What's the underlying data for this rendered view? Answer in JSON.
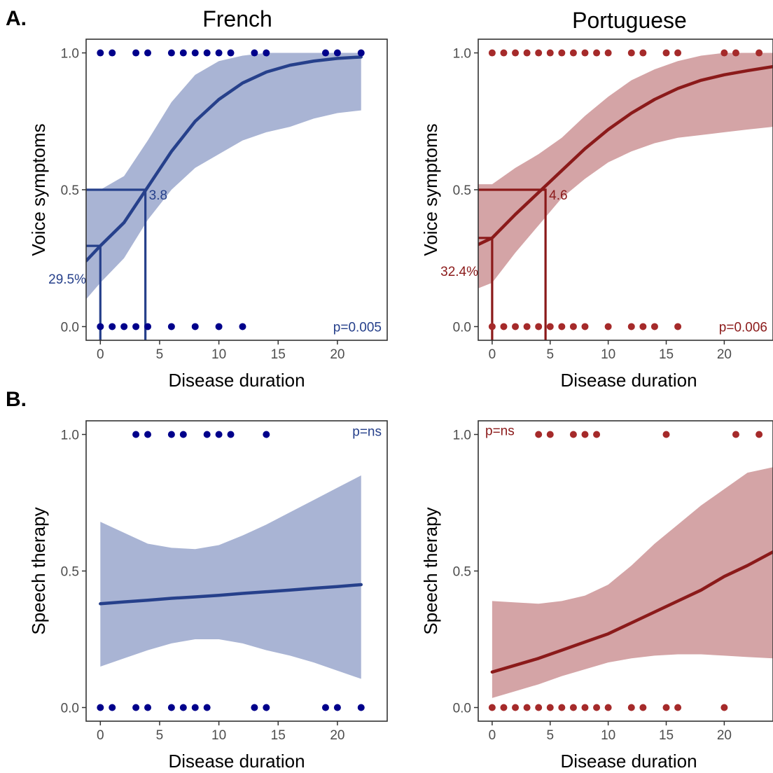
{
  "figure": {
    "panel_tags": [
      "A.",
      "B."
    ],
    "column_titles": [
      "French",
      "Portuguese"
    ]
  },
  "chart_data": [
    {
      "id": "voice-french",
      "type": "scatter",
      "series_color": "#26408b",
      "point_color": "#00008b",
      "ribbon_color": "#a9b4d4",
      "xlabel": "Disease duration",
      "ylabel": "Voice symptoms",
      "xlim": [
        -1.2,
        24.2
      ],
      "ylim": [
        -0.05,
        1.05
      ],
      "xticks": [
        0,
        5,
        10,
        15,
        20
      ],
      "yticks": [
        0.0,
        0.5,
        1.0
      ],
      "ytick_labels": [
        "0.0",
        "0.5",
        "1.0"
      ],
      "grid": false,
      "points_y1": [
        0,
        1,
        3,
        4,
        6,
        7,
        8,
        9,
        10,
        11,
        13,
        14,
        19,
        20,
        22
      ],
      "points_y0": [
        0,
        1,
        2,
        3,
        4,
        6,
        8,
        10,
        12
      ],
      "fit": {
        "x": [
          -1.2,
          0,
          2,
          4,
          6,
          8,
          10,
          12,
          14,
          16,
          18,
          20,
          22
        ],
        "y": [
          0.24,
          0.295,
          0.38,
          0.51,
          0.64,
          0.75,
          0.83,
          0.89,
          0.93,
          0.955,
          0.97,
          0.98,
          0.985
        ],
        "lower": [
          0.1,
          0.16,
          0.25,
          0.39,
          0.5,
          0.58,
          0.63,
          0.68,
          0.71,
          0.73,
          0.76,
          0.78,
          0.79
        ],
        "upper": [
          0.5,
          0.5,
          0.55,
          0.68,
          0.82,
          0.92,
          0.97,
          0.99,
          1.0,
          1.0,
          1.0,
          1.0,
          1.0
        ]
      },
      "guides": [
        {
          "x": 3.8,
          "y": 0.5,
          "label": "3.8"
        },
        {
          "x": 0,
          "y": 0.295,
          "label": "29.5%"
        }
      ],
      "p_label": "p=0.005",
      "p_position": "bottom-right"
    },
    {
      "id": "voice-portuguese",
      "type": "scatter",
      "series_color": "#8b1a1a",
      "point_color": "#a52a2a",
      "ribbon_color": "#d4a4a6",
      "xlabel": "Disease duration",
      "ylabel": "Voice symptoms",
      "xlim": [
        -1.2,
        24.2
      ],
      "ylim": [
        -0.05,
        1.05
      ],
      "xticks": [
        0,
        5,
        10,
        15,
        20
      ],
      "yticks": [
        0.0,
        0.5,
        1.0
      ],
      "ytick_labels": [
        "0.0",
        "0.5",
        "1.0"
      ],
      "grid": false,
      "points_y1": [
        0,
        1,
        2,
        3,
        4,
        5,
        6,
        7,
        8,
        9,
        10,
        12,
        13,
        15,
        16,
        20,
        21,
        23
      ],
      "points_y0": [
        0,
        1,
        2,
        3,
        4,
        5,
        6,
        7,
        8,
        10,
        12,
        13,
        14,
        16
      ],
      "fit": {
        "x": [
          -1.2,
          0,
          2,
          4,
          6,
          8,
          10,
          12,
          14,
          16,
          18,
          20,
          22,
          24.2
        ],
        "y": [
          0.3,
          0.324,
          0.41,
          0.49,
          0.57,
          0.65,
          0.72,
          0.78,
          0.83,
          0.87,
          0.9,
          0.92,
          0.935,
          0.95
        ],
        "lower": [
          0.14,
          0.16,
          0.27,
          0.37,
          0.47,
          0.54,
          0.6,
          0.64,
          0.67,
          0.69,
          0.7,
          0.71,
          0.72,
          0.73
        ],
        "upper": [
          0.52,
          0.52,
          0.58,
          0.63,
          0.69,
          0.77,
          0.84,
          0.9,
          0.94,
          0.97,
          0.99,
          1.0,
          1.0,
          1.0
        ]
      },
      "guides": [
        {
          "x": 4.6,
          "y": 0.5,
          "label": "4.6"
        },
        {
          "x": 0,
          "y": 0.324,
          "label": "32.4%"
        }
      ],
      "p_label": "p=0.006",
      "p_position": "bottom-right"
    },
    {
      "id": "speech-french",
      "type": "scatter",
      "series_color": "#26408b",
      "point_color": "#00008b",
      "ribbon_color": "#a9b4d4",
      "xlabel": "Disease duration",
      "ylabel": "Speech therapy",
      "xlim": [
        -1.2,
        24.2
      ],
      "ylim": [
        -0.05,
        1.05
      ],
      "xticks": [
        0,
        5,
        10,
        15,
        20
      ],
      "yticks": [
        0.0,
        0.5,
        1.0
      ],
      "ytick_labels": [
        "0.0",
        "0.5",
        "1.0"
      ],
      "grid": false,
      "points_y1": [
        3,
        4,
        6,
        7,
        9,
        10,
        11,
        14
      ],
      "points_y0": [
        0,
        1,
        3,
        4,
        6,
        7,
        8,
        9,
        13,
        14,
        19,
        20,
        22
      ],
      "fit": {
        "x": [
          0,
          2,
          4,
          6,
          8,
          10,
          12,
          14,
          16,
          18,
          20,
          22
        ],
        "y": [
          0.38,
          0.387,
          0.393,
          0.4,
          0.405,
          0.411,
          0.418,
          0.424,
          0.43,
          0.437,
          0.443,
          0.45
        ],
        "lower": [
          0.15,
          0.18,
          0.21,
          0.235,
          0.25,
          0.25,
          0.235,
          0.21,
          0.19,
          0.165,
          0.135,
          0.105
        ],
        "upper": [
          0.68,
          0.64,
          0.6,
          0.585,
          0.58,
          0.595,
          0.63,
          0.67,
          0.715,
          0.76,
          0.805,
          0.85
        ]
      },
      "guides": [],
      "p_label": "p=ns",
      "p_position": "top-right"
    },
    {
      "id": "speech-portuguese",
      "type": "scatter",
      "series_color": "#8b1a1a",
      "point_color": "#a52a2a",
      "ribbon_color": "#d4a4a6",
      "xlabel": "Disease duration",
      "ylabel": "Speech therapy",
      "xlim": [
        -1.2,
        24.2
      ],
      "ylim": [
        -0.05,
        1.05
      ],
      "xticks": [
        0,
        5,
        10,
        15,
        20
      ],
      "yticks": [
        0.0,
        0.5,
        1.0
      ],
      "ytick_labels": [
        "0.0",
        "0.5",
        "1.0"
      ],
      "grid": false,
      "points_y1": [
        4,
        5,
        7,
        8,
        9,
        15,
        21,
        23
      ],
      "points_y0": [
        0,
        1,
        2,
        3,
        4,
        5,
        6,
        7,
        8,
        9,
        10,
        12,
        13,
        15,
        16,
        20
      ],
      "fit": {
        "x": [
          0,
          2,
          4,
          6,
          8,
          10,
          12,
          14,
          16,
          18,
          20,
          22,
          24.2
        ],
        "y": [
          0.13,
          0.155,
          0.18,
          0.21,
          0.24,
          0.27,
          0.31,
          0.35,
          0.39,
          0.43,
          0.48,
          0.52,
          0.57
        ],
        "lower": [
          0.035,
          0.06,
          0.085,
          0.115,
          0.14,
          0.165,
          0.18,
          0.19,
          0.195,
          0.195,
          0.19,
          0.185,
          0.18
        ],
        "upper": [
          0.39,
          0.385,
          0.38,
          0.39,
          0.41,
          0.45,
          0.52,
          0.6,
          0.67,
          0.74,
          0.8,
          0.86,
          0.88
        ]
      },
      "guides": [],
      "p_label": "p=ns",
      "p_position": "top-left"
    }
  ]
}
